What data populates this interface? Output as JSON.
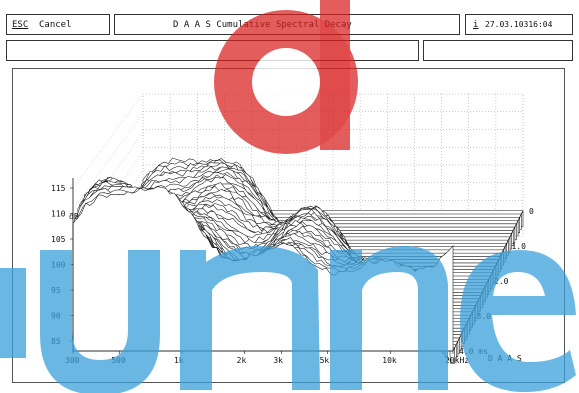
{
  "toolbar": {
    "esc_key": "ESC",
    "cancel_label": "Cancel",
    "title": "D A A S  Cumulative Spectral Decay",
    "info_glyph": "i",
    "datetime": "27.03.10316:04"
  },
  "chart_data": {
    "type": "waterfall",
    "title": "",
    "y_unit": "dB",
    "y_ticks": [
      "115",
      "110",
      "105",
      "100",
      "95",
      "90",
      "85"
    ],
    "x_ticks": [
      "300",
      "500",
      "1k",
      "2k",
      "3k",
      "5k",
      "10k",
      "20kHz"
    ],
    "x_tick_values": [
      300,
      500,
      1000,
      2000,
      3000,
      5000,
      10000,
      20000
    ],
    "time_ticks": [
      "0",
      "1.0",
      "2.0",
      "3.0",
      "4.0 ms"
    ],
    "time_tick_values": [
      0,
      1.0,
      2.0,
      3.0,
      4.0
    ],
    "time_unit": "ms",
    "slices": 44,
    "brand": "D A A S",
    "ylim": [
      85,
      115
    ],
    "xlim": [
      300,
      20000
    ],
    "grid": true
  },
  "colors": {
    "watermark_red": "#d81e1e",
    "watermark_blue": "#3aa0dc",
    "line": "#111111",
    "grid": "#9a9a9a"
  }
}
